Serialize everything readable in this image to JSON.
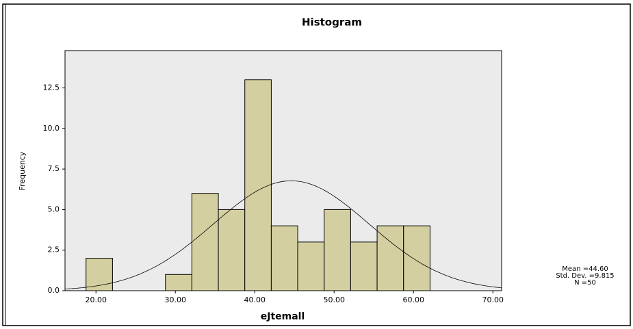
{
  "chart_data": {
    "type": "histogram",
    "title": "Histogram",
    "x_label": "eJtemall",
    "y_label": "Frequency",
    "bins": [
      18.75,
      22.083,
      25.417,
      28.75,
      32.083,
      35.417,
      38.75,
      42.083,
      45.417,
      48.75,
      52.083,
      55.417,
      58.75,
      62.083
    ],
    "counts": [
      2,
      0,
      0,
      1,
      6,
      5,
      13,
      4,
      3,
      5,
      3,
      4,
      4
    ],
    "color": "#d4cfa0",
    "xlim": [
      16.1,
      71.1
    ],
    "xticks": [
      {
        "value": 20,
        "label": "20.00"
      },
      {
        "value": 30,
        "label": "30.00"
      },
      {
        "value": 40,
        "label": "40.00"
      },
      {
        "value": 50,
        "label": "50.00"
      },
      {
        "value": 60,
        "label": "60.00"
      },
      {
        "value": 70,
        "label": "70.00"
      }
    ],
    "ylim": [
      0,
      14.8
    ],
    "yticks": [
      {
        "value": 0,
        "label": "0.0"
      },
      2.5,
      {
        "value": 5,
        "label": "5.0"
      },
      7.5,
      {
        "value": 10,
        "label": "10.0"
      },
      12.5
    ],
    "stats": {
      "mean": {
        "value": 44.6,
        "label": "Mean =44.60"
      },
      "std_dev": {
        "value": 9.815,
        "label": "Std. Dev. =9.815"
      },
      "n": {
        "value": 50,
        "label": "N =50"
      }
    }
  }
}
